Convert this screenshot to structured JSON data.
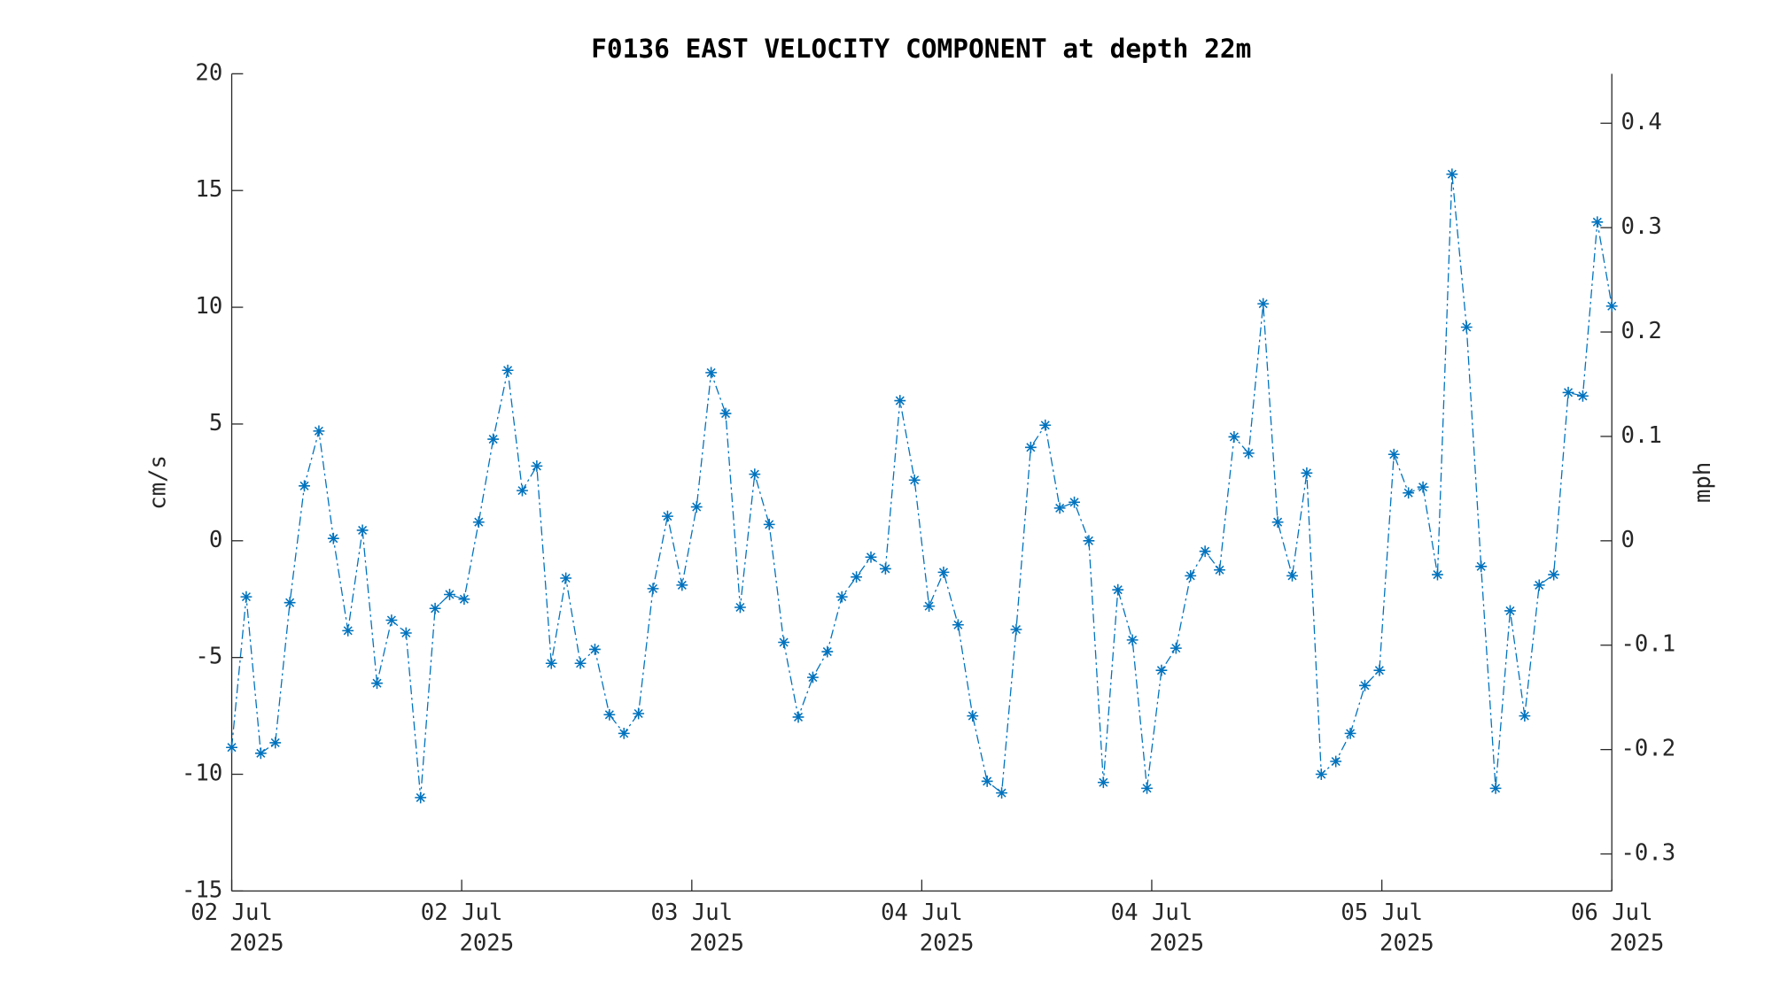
{
  "chart_data": {
    "type": "line",
    "title": "F0136 EAST VELOCITY COMPONENT at depth 22m",
    "ylabel": "cm/s",
    "y2label": "mph",
    "x": [
      0,
      1,
      2,
      3,
      4,
      5,
      6,
      7,
      8,
      9,
      10,
      11,
      12,
      13,
      14,
      15,
      16,
      17,
      18,
      19,
      20,
      21,
      22,
      23,
      24,
      25,
      26,
      27,
      28,
      29,
      30,
      31,
      32,
      33,
      34,
      35,
      36,
      37,
      38,
      39,
      40,
      41,
      42,
      43,
      44,
      45,
      46,
      47,
      48,
      49,
      50,
      51,
      52,
      53,
      54,
      55,
      56,
      57,
      58,
      59,
      60,
      61,
      62,
      63,
      64,
      65,
      66,
      67,
      68,
      69,
      70,
      71,
      72,
      73,
      74,
      75,
      76,
      77,
      78,
      79,
      80,
      81,
      82,
      83,
      84,
      85,
      86,
      87,
      88,
      89,
      90,
      91,
      92,
      93,
      94,
      95
    ],
    "series": [
      {
        "name": "East velocity",
        "color": "#0072bd",
        "values": [
          -8.85,
          -2.4,
          -9.1,
          -8.65,
          -2.65,
          2.35,
          4.7,
          0.1,
          -3.85,
          0.45,
          -6.1,
          -3.4,
          -3.95,
          -11.0,
          -2.9,
          -2.3,
          -2.5,
          0.8,
          4.35,
          7.3,
          2.15,
          3.2,
          -5.25,
          -1.6,
          -5.25,
          -4.65,
          -7.45,
          -8.25,
          -7.4,
          -2.05,
          1.05,
          -1.9,
          1.45,
          7.2,
          5.45,
          -2.85,
          2.85,
          0.7,
          -4.35,
          -7.55,
          -5.85,
          -4.75,
          -2.4,
          -1.55,
          -0.7,
          -1.2,
          6.0,
          2.6,
          -2.8,
          -1.35,
          -3.6,
          -7.5,
          -10.3,
          -10.8,
          -3.8,
          4.0,
          4.95,
          1.4,
          1.65,
          0.0,
          -10.35,
          -2.1,
          -4.25,
          -10.6,
          -5.55,
          -4.6,
          -1.5,
          -0.45,
          -1.25,
          4.45,
          3.75,
          10.15,
          0.8,
          -1.5,
          2.9,
          -10.0,
          -9.45,
          -8.25,
          -6.2,
          -5.55,
          3.7,
          2.05,
          2.3,
          -1.45,
          15.7,
          9.15,
          -1.1,
          -10.6,
          -3.0,
          -7.5,
          -1.9,
          -1.45,
          6.35,
          6.2,
          13.65,
          10.05
        ]
      }
    ],
    "xlim": [
      0,
      95
    ],
    "xticks": [
      {
        "value": 0,
        "label": [
          "02 Jul",
          "2025"
        ]
      },
      {
        "value": 15.83,
        "label": [
          "02 Jul",
          "2025"
        ]
      },
      {
        "value": 31.67,
        "label": [
          "03 Jul",
          "2025"
        ]
      },
      {
        "value": 47.5,
        "label": [
          "04 Jul",
          "2025"
        ]
      },
      {
        "value": 63.33,
        "label": [
          "04 Jul",
          "2025"
        ]
      },
      {
        "value": 79.17,
        "label": [
          "05 Jul",
          "2025"
        ]
      },
      {
        "value": 95,
        "label": [
          "06 Jul",
          "2025"
        ]
      }
    ],
    "ylim": [
      -15,
      20
    ],
    "yticks": [
      -15,
      -10,
      -5,
      0,
      5,
      10,
      15,
      20
    ],
    "y2lim": [
      -0.3355,
      0.4474
    ],
    "y2ticks": [
      -0.3,
      -0.2,
      -0.1,
      0,
      0.1,
      0.2,
      0.3,
      0.4
    ]
  }
}
